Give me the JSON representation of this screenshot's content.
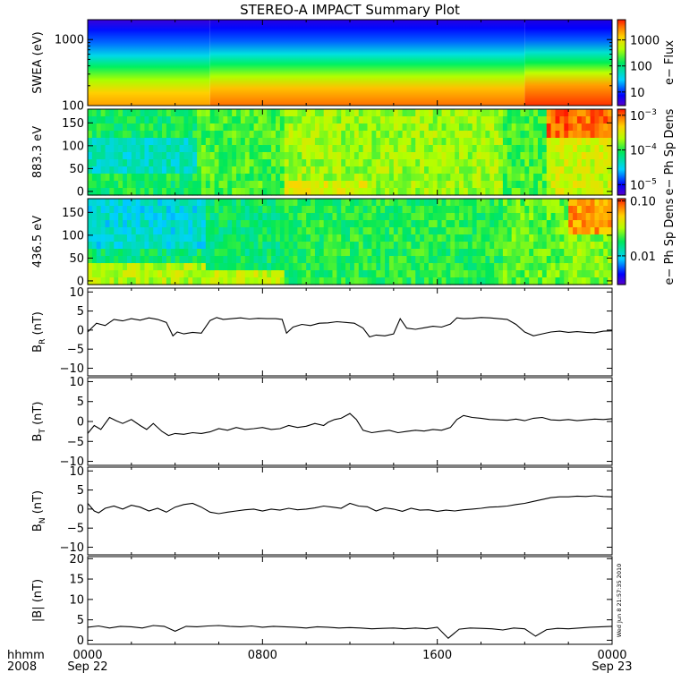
{
  "chart_data": {
    "title": "STEREO-A IMPACT Summary Plot",
    "time_axis": {
      "row1_label": "hhmm",
      "row2_label": "2008",
      "ticks": [
        {
          "hour": 0,
          "label": "0000",
          "sublabel": "Sep 22"
        },
        {
          "hour": 8,
          "label": "0800",
          "sublabel": ""
        },
        {
          "hour": 16,
          "label": "1600",
          "sublabel": ""
        },
        {
          "hour": 24,
          "label": "0000",
          "sublabel": "Sep 23"
        }
      ],
      "range_hours": [
        0,
        24
      ]
    },
    "timestamp": "Wed Jun  8 21:57:35 2010",
    "panels": [
      {
        "type": "heatmap",
        "ylabel": "SWEA (eV)",
        "yscale": "log",
        "ylim": [
          100,
          2000
        ],
        "yticks": [
          {
            "v": 100,
            "label": "100"
          },
          {
            "v": 1000,
            "label": "1000"
          }
        ],
        "colorbar": {
          "label": "e− Flux",
          "scale": "log",
          "range": [
            3,
            6000
          ],
          "ticks": [
            {
              "v": 10,
              "label": "10"
            },
            {
              "v": 100,
              "label": "100"
            },
            {
              "v": 1000,
              "label": "1000"
            }
          ]
        },
        "description_hours": [
          0,
          24
        ]
      },
      {
        "type": "heatmap",
        "ylabel": "883.3 eV",
        "ylim": [
          -8,
          180
        ],
        "yticks": [
          {
            "v": 0,
            "label": "0"
          },
          {
            "v": 50,
            "label": "50"
          },
          {
            "v": 100,
            "label": "100"
          },
          {
            "v": 150,
            "label": "150"
          }
        ],
        "colorbar": {
          "label": "e− Ph Sp Dens",
          "scale": "log",
          "range": [
            5e-06,
            0.0015
          ],
          "ticks": [
            {
              "v": 1e-05,
              "base": "10",
              "exp": "−5"
            },
            {
              "v": 0.0001,
              "base": "10",
              "exp": "−4"
            },
            {
              "v": 0.001,
              "base": "10",
              "exp": "−3"
            }
          ]
        }
      },
      {
        "type": "heatmap",
        "ylabel": "436.5 eV",
        "ylim": [
          -8,
          180
        ],
        "yticks": [
          {
            "v": 0,
            "label": "0"
          },
          {
            "v": 50,
            "label": "50"
          },
          {
            "v": 100,
            "label": "100"
          },
          {
            "v": 150,
            "label": "150"
          }
        ],
        "colorbar": {
          "label": "e− Ph Sp Dens",
          "scale": "log",
          "range": [
            0.003,
            0.11
          ],
          "ticks": [
            {
              "v": 0.01,
              "label": "0.01"
            },
            {
              "v": 0.1,
              "label": "0.10"
            }
          ]
        }
      },
      {
        "type": "line",
        "ylabel_base": "B",
        "ylabel_sub": "R",
        "ylabel_unit": " (nT)",
        "ylim": [
          -12,
          11
        ],
        "yticks": [
          {
            "v": -10,
            "label": "−10"
          },
          {
            "v": -5,
            "label": "−5"
          },
          {
            "v": 0,
            "label": "0"
          },
          {
            "v": 5,
            "label": "5"
          },
          {
            "v": 10,
            "label": "10"
          }
        ],
        "x": [
          0,
          0.4,
          0.8,
          1.2,
          1.6,
          2.0,
          2.4,
          2.8,
          3.2,
          3.6,
          3.9,
          4.1,
          4.4,
          4.8,
          5.2,
          5.6,
          5.9,
          6.2,
          6.6,
          7.0,
          7.4,
          7.8,
          8.2,
          8.6,
          8.9,
          9.1,
          9.4,
          9.8,
          10.2,
          10.6,
          11.0,
          11.4,
          11.8,
          12.2,
          12.6,
          12.9,
          13.2,
          13.6,
          14.0,
          14.3,
          14.6,
          15.0,
          15.4,
          15.8,
          16.2,
          16.6,
          16.9,
          17.2,
          17.6,
          18.0,
          18.4,
          18.8,
          19.2,
          19.6,
          20.0,
          20.4,
          20.8,
          21.2,
          21.6,
          22.0,
          22.4,
          22.8,
          23.2,
          23.6,
          24.0
        ],
        "y": [
          -0.5,
          1.8,
          1.2,
          2.8,
          2.4,
          3.0,
          2.6,
          3.2,
          2.8,
          2.0,
          -1.5,
          -0.5,
          -1.0,
          -0.6,
          -0.8,
          2.5,
          3.3,
          2.8,
          3.0,
          3.2,
          2.9,
          3.1,
          3.0,
          3.0,
          2.8,
          -0.8,
          0.8,
          1.5,
          1.2,
          1.8,
          1.9,
          2.2,
          2.0,
          1.8,
          0.5,
          -1.8,
          -1.3,
          -1.5,
          -1.0,
          3.0,
          0.5,
          0.2,
          0.6,
          1.0,
          0.8,
          1.6,
          3.2,
          3.0,
          3.1,
          3.3,
          3.2,
          3.0,
          2.8,
          1.5,
          -0.5,
          -1.5,
          -1.0,
          -0.5,
          -0.3,
          -0.6,
          -0.4,
          -0.6,
          -0.7,
          -0.3,
          -0.2
        ]
      },
      {
        "type": "line",
        "ylabel_base": "B",
        "ylabel_sub": "T",
        "ylabel_unit": " (nT)",
        "ylim": [
          -11,
          11
        ],
        "yticks": [
          {
            "v": -10,
            "label": "−10"
          },
          {
            "v": -5,
            "label": "−5"
          },
          {
            "v": 0,
            "label": "0"
          },
          {
            "v": 5,
            "label": "5"
          },
          {
            "v": 10,
            "label": "10"
          }
        ],
        "x": [
          0,
          0.3,
          0.6,
          1.0,
          1.3,
          1.6,
          2.0,
          2.4,
          2.7,
          3.0,
          3.4,
          3.7,
          4.0,
          4.4,
          4.8,
          5.2,
          5.6,
          6.0,
          6.4,
          6.8,
          7.2,
          7.6,
          8.0,
          8.4,
          8.8,
          9.2,
          9.6,
          10.0,
          10.4,
          10.8,
          11.0,
          11.3,
          11.6,
          12.0,
          12.3,
          12.6,
          13.0,
          13.4,
          13.8,
          14.2,
          14.6,
          15.0,
          15.4,
          15.8,
          16.2,
          16.6,
          16.9,
          17.2,
          17.6,
          18.0,
          18.4,
          18.8,
          19.2,
          19.6,
          20.0,
          20.4,
          20.8,
          21.2,
          21.6,
          22.0,
          22.4,
          22.8,
          23.2,
          23.6,
          24.0
        ],
        "y": [
          -3.0,
          -1.0,
          -2.0,
          1.0,
          0.2,
          -0.5,
          0.5,
          -1.0,
          -2.0,
          -0.5,
          -2.5,
          -3.5,
          -3.0,
          -3.2,
          -2.8,
          -3.0,
          -2.6,
          -1.8,
          -2.2,
          -1.5,
          -2.0,
          -1.8,
          -1.5,
          -2.0,
          -1.8,
          -1.0,
          -1.5,
          -1.2,
          -0.5,
          -1.0,
          -0.2,
          0.5,
          0.8,
          2.0,
          0.5,
          -2.2,
          -2.8,
          -2.5,
          -2.2,
          -2.8,
          -2.5,
          -2.2,
          -2.4,
          -2.0,
          -2.2,
          -1.5,
          0.5,
          1.5,
          1.0,
          0.8,
          0.5,
          0.4,
          0.3,
          0.6,
          0.2,
          0.8,
          1.0,
          0.4,
          0.3,
          0.5,
          0.2,
          0.4,
          0.6,
          0.5,
          0.7
        ]
      },
      {
        "type": "line",
        "ylabel_base": "B",
        "ylabel_sub": "N",
        "ylabel_unit": " (nT)",
        "ylim": [
          -12,
          11
        ],
        "yticks": [
          {
            "v": -10,
            "label": "−10"
          },
          {
            "v": -5,
            "label": "−5"
          },
          {
            "v": 0,
            "label": "0"
          },
          {
            "v": 5,
            "label": "5"
          },
          {
            "v": 10,
            "label": "10"
          }
        ],
        "x": [
          0,
          0.3,
          0.5,
          0.8,
          1.2,
          1.6,
          2.0,
          2.4,
          2.8,
          3.2,
          3.6,
          4.0,
          4.4,
          4.8,
          5.2,
          5.6,
          6.0,
          6.4,
          6.8,
          7.2,
          7.6,
          8.0,
          8.4,
          8.8,
          9.2,
          9.6,
          10.0,
          10.4,
          10.8,
          11.2,
          11.6,
          12.0,
          12.4,
          12.8,
          13.2,
          13.6,
          14.0,
          14.4,
          14.8,
          15.2,
          15.6,
          16.0,
          16.4,
          16.8,
          17.2,
          17.6,
          18.0,
          18.4,
          18.8,
          19.2,
          19.6,
          20.0,
          20.4,
          20.8,
          21.2,
          21.6,
          22.0,
          22.4,
          22.8,
          23.2,
          23.6,
          24.0
        ],
        "y": [
          1.5,
          -0.5,
          -1.0,
          0.2,
          0.8,
          0.0,
          1.0,
          0.5,
          -0.5,
          0.2,
          -0.8,
          0.5,
          1.2,
          1.5,
          0.5,
          -0.8,
          -1.2,
          -0.8,
          -0.5,
          -0.2,
          0.0,
          -0.5,
          0.0,
          -0.3,
          0.2,
          -0.2,
          0.0,
          0.3,
          0.8,
          0.5,
          0.2,
          1.5,
          0.8,
          0.6,
          -0.5,
          0.3,
          0.0,
          -0.6,
          0.2,
          -0.3,
          -0.2,
          -0.6,
          -0.3,
          -0.5,
          -0.2,
          0.0,
          0.2,
          0.5,
          0.6,
          0.8,
          1.2,
          1.5,
          2.0,
          2.5,
          3.0,
          3.2,
          3.2,
          3.4,
          3.3,
          3.5,
          3.3,
          3.2
        ]
      },
      {
        "type": "line",
        "ylabel": "|B| (nT)",
        "ylim": [
          -1,
          20.5
        ],
        "yticks": [
          {
            "v": 0,
            "label": "0"
          },
          {
            "v": 5,
            "label": "5"
          },
          {
            "v": 10,
            "label": "10"
          },
          {
            "v": 15,
            "label": "15"
          },
          {
            "v": 20,
            "label": "20"
          }
        ],
        "x": [
          0,
          0.5,
          1.0,
          1.5,
          2.0,
          2.5,
          3.0,
          3.5,
          4.0,
          4.5,
          5.0,
          5.5,
          6.0,
          6.5,
          7.0,
          7.5,
          8.0,
          8.5,
          9.0,
          9.5,
          10.0,
          10.5,
          11.0,
          11.5,
          12.0,
          12.5,
          13.0,
          13.5,
          14.0,
          14.5,
          15.0,
          15.5,
          16.0,
          16.5,
          17.0,
          17.5,
          18.0,
          18.5,
          19.0,
          19.5,
          20.0,
          20.5,
          21.0,
          21.5,
          22.0,
          22.5,
          23.0,
          23.5,
          24.0
        ],
        "y": [
          3.2,
          3.5,
          3.0,
          3.4,
          3.3,
          3.0,
          3.6,
          3.4,
          2.2,
          3.4,
          3.3,
          3.5,
          3.6,
          3.4,
          3.3,
          3.5,
          3.2,
          3.4,
          3.3,
          3.2,
          3.0,
          3.3,
          3.2,
          3.0,
          3.1,
          3.0,
          2.8,
          2.9,
          3.0,
          2.8,
          3.0,
          2.8,
          3.2,
          0.5,
          2.7,
          3.0,
          2.9,
          2.8,
          2.5,
          3.0,
          2.8,
          1.0,
          2.6,
          2.9,
          2.8,
          3.0,
          3.2,
          3.3,
          3.4
        ]
      }
    ]
  }
}
